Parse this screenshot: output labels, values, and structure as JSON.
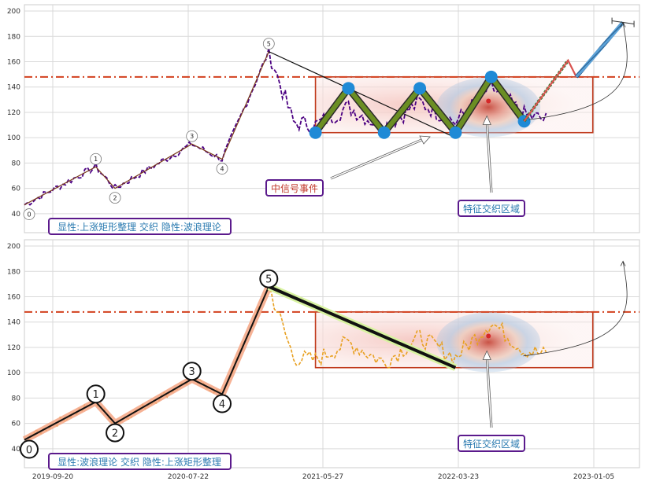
{
  "chart_data": {
    "type": "line",
    "x_dates": [
      "2019-09-20",
      "2020-07-22",
      "2021-05-27",
      "2022-03-23",
      "2023-01-05"
    ],
    "y_ticks": [
      40,
      60,
      80,
      100,
      120,
      140,
      160,
      180,
      200
    ],
    "ylim": [
      25,
      205
    ],
    "grid": true,
    "resistance_level": 148,
    "colors": {
      "top_price": "#4b0082",
      "bottom_price": "#e8a020",
      "resistance": "#d2401e",
      "box_edge": "#c0391b",
      "box_fill": "#f9d9d6",
      "zigzag_fill": "#6b8e23",
      "node": "#1f8ad6",
      "wave_line": "#111111",
      "wave_shadow": "#f4a582",
      "annot_border": "#5b1a8c",
      "annot_text_blue": "#2a7ab0",
      "annot_text_red": "#c0392b"
    },
    "panels": [
      {
        "id": "top",
        "caption": "显性:上涨矩形整理 交织 隐性:波浪理论",
        "wave_labels": [
          "0",
          "1",
          "2",
          "3",
          "4",
          "5"
        ],
        "wave_points": [
          [
            0,
            47
          ],
          [
            26,
            77
          ],
          [
            33,
            60
          ],
          [
            61,
            95
          ],
          [
            72,
            83
          ],
          [
            89,
            168
          ]
        ],
        "box": {
          "x0": 106,
          "x1": 207,
          "y0": 104,
          "y1": 148
        },
        "zigzag_points": [
          [
            106,
            104
          ],
          [
            118,
            139
          ],
          [
            131,
            104
          ],
          [
            144,
            139
          ],
          [
            157,
            104
          ],
          [
            170,
            148
          ],
          [
            182,
            113
          ]
        ],
        "trend_line": [
          [
            89,
            168
          ],
          [
            157,
            100
          ]
        ],
        "post_path": [
          [
            182,
            113
          ],
          [
            198,
            161
          ],
          [
            201,
            148
          ],
          [
            218,
            191
          ]
        ],
        "signal_label": "中信号事件",
        "region_label": "特征交织区域",
        "has_target_marker": true
      },
      {
        "id": "bottom",
        "caption": "显性:波浪理论 交织 隐性:上涨矩形整理",
        "wave_labels": [
          "0",
          "1",
          "2",
          "3",
          "4",
          "5"
        ],
        "wave_points": [
          [
            0,
            47
          ],
          [
            26,
            77
          ],
          [
            33,
            60
          ],
          [
            61,
            95
          ],
          [
            72,
            83
          ],
          [
            89,
            168
          ]
        ],
        "box": {
          "x0": 106,
          "x1": 207,
          "y0": 104,
          "y1": 148
        },
        "trend_line": [
          [
            89,
            168
          ],
          [
            157,
            104
          ]
        ],
        "region_label": "特征交织区域"
      }
    ]
  }
}
